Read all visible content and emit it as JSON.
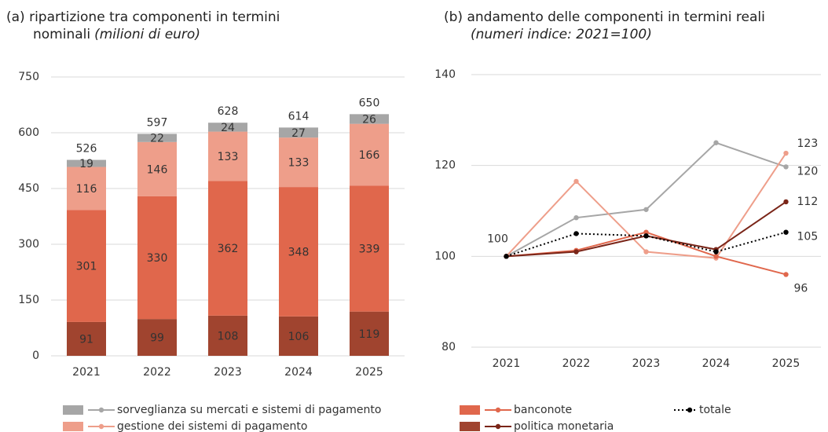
{
  "chart_data": [
    {
      "type": "stacked_bar",
      "title": [
        "(a) ripartizione tra componenti in termini",
        "nominali"
      ],
      "subtitle": "(milioni di euro)",
      "categories": [
        "2021",
        "2022",
        "2023",
        "2024",
        "2025"
      ],
      "series": [
        {
          "name": "politica monetaria",
          "color": "#a0442f",
          "values": [
            91,
            99,
            108,
            106,
            119
          ]
        },
        {
          "name": "banconote",
          "color": "#e0674c",
          "values": [
            301,
            330,
            362,
            348,
            339
          ]
        },
        {
          "name": "gestione dei sistemi di pagamento",
          "color": "#ee9e8a",
          "values": [
            116,
            146,
            133,
            133,
            166
          ]
        },
        {
          "name": "sorveglianza su mercati e sistemi di pagamento",
          "color": "#a6a6a6",
          "values": [
            19,
            22,
            24,
            27,
            26
          ]
        }
      ],
      "totals": [
        526,
        597,
        628,
        614,
        650
      ],
      "ylim": [
        0,
        750
      ],
      "yticks": [
        0,
        150,
        300,
        450,
        600,
        750
      ],
      "grid": true
    },
    {
      "type": "line",
      "title": [
        "(b) andamento delle componenti in termini reali"
      ],
      "subtitle": "(numeri indice: 2021=100)",
      "categories": [
        "2021",
        "2022",
        "2023",
        "2024",
        "2025"
      ],
      "series": [
        {
          "name": "sorveglianza su mercati e sistemi di pagamento",
          "color": "#a6a6a6",
          "values": [
            100,
            108.5,
            110.3,
            125,
            119.7
          ],
          "value_labels": [
            null,
            null,
            null,
            null,
            "120"
          ]
        },
        {
          "name": "gestione dei sistemi di pagamento",
          "color": "#ee9e8a",
          "values": [
            100,
            116.5,
            101,
            99.6,
            122.7
          ],
          "value_labels": [
            null,
            null,
            null,
            null,
            "123"
          ]
        },
        {
          "name": "banconote",
          "color": "#e0674c",
          "values": [
            100,
            101.3,
            105.3,
            100,
            96
          ],
          "value_labels": [
            null,
            null,
            null,
            null,
            "96"
          ]
        },
        {
          "name": "politica monetaria",
          "color": "#7a2518",
          "values": [
            100,
            101,
            104.5,
            101.5,
            112
          ],
          "value_labels": [
            null,
            null,
            null,
            null,
            "112"
          ]
        },
        {
          "name": "totale",
          "color": "#000000",
          "dashed": true,
          "values": [
            100,
            105,
            104.5,
            101,
            105.3
          ],
          "value_labels": [
            "100",
            null,
            null,
            null,
            "105"
          ]
        }
      ],
      "ylim": [
        80,
        140
      ],
      "yticks": [
        80,
        100,
        120,
        140
      ],
      "grid": true
    }
  ]
}
